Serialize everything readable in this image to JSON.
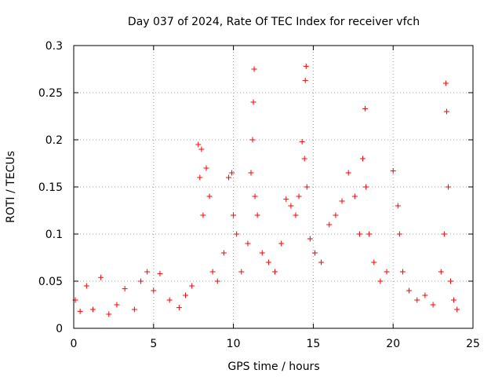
{
  "chart_data": {
    "type": "scatter",
    "title": "Day 037 of 2024, Rate Of TEC Index for receiver vfch",
    "xlabel": "GPS time / hours",
    "ylabel": "ROTI / TECUs",
    "xlim": [
      0,
      25
    ],
    "ylim": [
      0,
      0.3
    ],
    "x_ticks": [
      0,
      5,
      10,
      15,
      20,
      25
    ],
    "x_tick_labels": [
      "0",
      "5",
      "10",
      "15",
      "20",
      "25"
    ],
    "y_ticks": [
      0,
      0.05,
      0.1,
      0.15,
      0.2,
      0.25,
      0.3
    ],
    "y_tick_labels": [
      "0",
      "0.05",
      "0.1",
      "0.15",
      "0.2",
      "0.25",
      "0.3"
    ],
    "grid": true,
    "marker": "+",
    "color": "#ff0000",
    "series": [
      {
        "name": "ROTI",
        "x": [
          0.1,
          0.4,
          0.8,
          1.2,
          1.7,
          2.2,
          2.7,
          3.2,
          3.8,
          4.2,
          4.6,
          5.0,
          5.4,
          6.0,
          6.6,
          7.0,
          7.4,
          7.8,
          7.9,
          8.0,
          8.1,
          8.3,
          8.5,
          8.7,
          9.0,
          9.4,
          9.7,
          9.9,
          10.0,
          10.2,
          10.5,
          10.9,
          11.1,
          11.2,
          11.25,
          11.3,
          11.35,
          11.5,
          11.8,
          12.2,
          12.6,
          13.0,
          13.3,
          13.6,
          13.9,
          14.1,
          14.3,
          14.45,
          14.5,
          14.55,
          14.6,
          14.8,
          15.1,
          15.5,
          16.0,
          16.4,
          16.8,
          17.2,
          17.6,
          17.9,
          18.1,
          18.25,
          18.3,
          18.5,
          18.8,
          19.2,
          19.6,
          20.0,
          20.3,
          20.4,
          20.6,
          21.0,
          21.5,
          22.0,
          22.5,
          23.0,
          23.2,
          23.3,
          23.35,
          23.45,
          23.6,
          23.8,
          24.0
        ],
        "y": [
          0.03,
          0.018,
          0.045,
          0.02,
          0.054,
          0.015,
          0.025,
          0.042,
          0.02,
          0.05,
          0.06,
          0.04,
          0.058,
          0.03,
          0.022,
          0.035,
          0.045,
          0.195,
          0.16,
          0.19,
          0.12,
          0.17,
          0.14,
          0.06,
          0.05,
          0.08,
          0.16,
          0.165,
          0.12,
          0.1,
          0.06,
          0.09,
          0.165,
          0.2,
          0.24,
          0.275,
          0.14,
          0.12,
          0.08,
          0.07,
          0.06,
          0.09,
          0.137,
          0.13,
          0.12,
          0.14,
          0.198,
          0.18,
          0.263,
          0.278,
          0.15,
          0.095,
          0.08,
          0.07,
          0.11,
          0.12,
          0.135,
          0.165,
          0.14,
          0.1,
          0.18,
          0.233,
          0.15,
          0.1,
          0.07,
          0.05,
          0.06,
          0.167,
          0.13,
          0.1,
          0.06,
          0.04,
          0.03,
          0.035,
          0.025,
          0.06,
          0.1,
          0.26,
          0.23,
          0.15,
          0.05,
          0.03,
          0.02
        ]
      }
    ]
  }
}
